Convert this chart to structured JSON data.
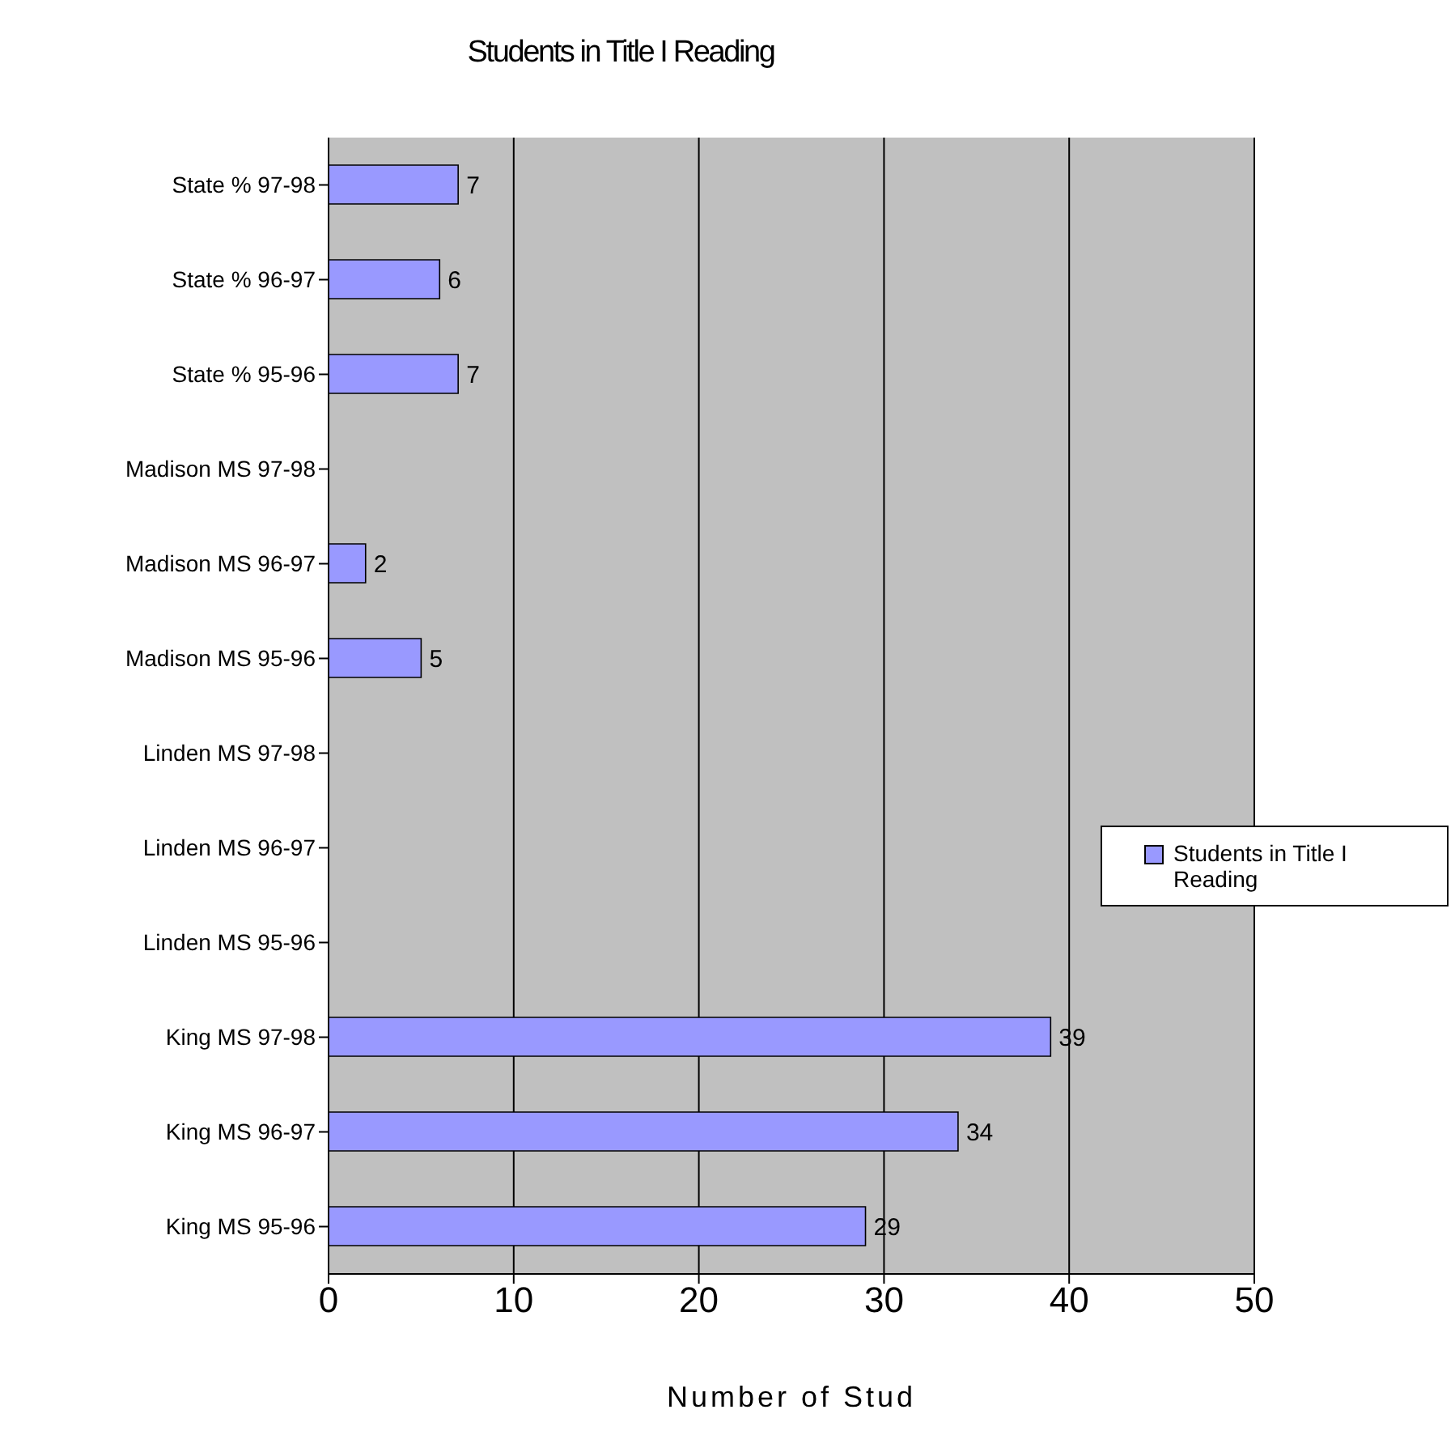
{
  "chart_data": {
    "type": "bar",
    "orientation": "horizontal",
    "title": "Students in Title I Reading",
    "xlabel": "Number of Stud",
    "categories": [
      "State % 97-98",
      "State % 96-97",
      "State % 95-96",
      "Madison MS 97-98",
      "Madison MS 96-97",
      "Madison MS 95-96",
      "Linden MS 97-98",
      "Linden MS 96-97",
      "Linden MS 95-96",
      "King MS 97-98",
      "King MS 96-97",
      "King MS 95-96"
    ],
    "series": [
      {
        "name": "Students in Title I Reading",
        "color": "#9999ff",
        "values": [
          7,
          6,
          7,
          null,
          2,
          5,
          null,
          null,
          null,
          39,
          34,
          29
        ]
      }
    ],
    "xlim": [
      0,
      50
    ],
    "xticks": [
      0,
      10,
      20,
      30,
      40,
      50
    ],
    "grid": "x",
    "legend": "right",
    "data_labels": true
  }
}
